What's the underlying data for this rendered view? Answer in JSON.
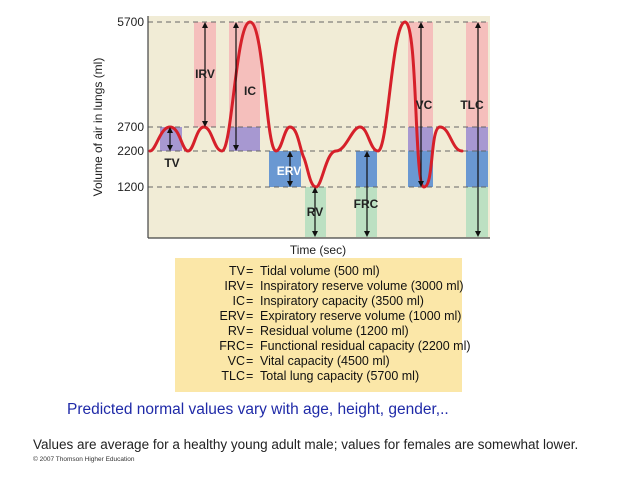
{
  "diagram": {
    "y_axis_label": "Volume of air in lungs (ml)",
    "x_axis_label": "Time (sec)",
    "y_ticks": [
      "5700",
      "2700",
      "2200",
      "1200"
    ],
    "region_labels": {
      "irv": "IRV",
      "ic": "IC",
      "tv": "TV",
      "erv": "ERV",
      "rv": "RV",
      "frc": "FRC",
      "vc": "VC",
      "tlc": "TLC"
    },
    "colors": {
      "plot_background": "#f1ecd6",
      "trace": "#d6202a",
      "pink_band": "#f6b7b7",
      "purple_band": "#9a8ad0",
      "blue_band": "#5b8fd2",
      "green_band": "#b6dfc0",
      "legend_background": "#fbe7a8",
      "note_text": "#1f2aa8"
    }
  },
  "legend": [
    {
      "abbr": "TV",
      "eq": "=",
      "desc": "Tidal volume (500 ml)"
    },
    {
      "abbr": "IRV",
      "eq": "=",
      "desc": "Inspiratory reserve volume (3000 ml)"
    },
    {
      "abbr": "IC",
      "eq": "=",
      "desc": "Inspiratory capacity (3500 ml)"
    },
    {
      "abbr": "ERV",
      "eq": "=",
      "desc": "Expiratory reserve volume (1000 ml)"
    },
    {
      "abbr": "RV",
      "eq": "=",
      "desc": "Residual volume (1200 ml)"
    },
    {
      "abbr": "FRC",
      "eq": "=",
      "desc": "Functional residual capacity (2200 ml)"
    },
    {
      "abbr": "VC",
      "eq": "=",
      "desc": "Vital capacity (4500 ml)"
    },
    {
      "abbr": "TLC",
      "eq": "=",
      "desc": "Total lung capacity (5700 ml)"
    }
  ],
  "note": "Predicted normal values vary with age, height, gender,..",
  "footer": {
    "values_text": "Values are average for a healthy young adult male;  values for females are somewhat lower.",
    "copyright": "© 2007 Thomson Higher Education"
  }
}
